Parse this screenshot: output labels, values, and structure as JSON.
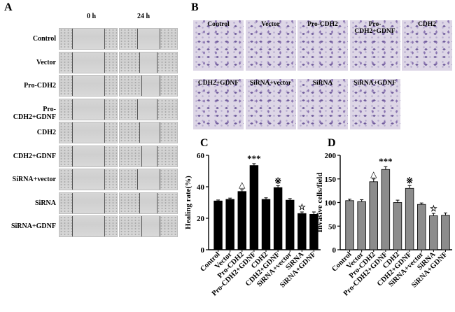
{
  "panel_a": {
    "letter": "A",
    "col_headers": [
      "0 h",
      "24 h"
    ],
    "rows": [
      "Control",
      "Vector",
      "Pro-CDH2",
      "Pro-CDH2+GDNF",
      "CDH2",
      "CDH2+GDNF",
      "SiRNA+vector",
      "SiRNA",
      "SiRNA+GDNF"
    ]
  },
  "panel_b": {
    "letter": "B",
    "images": [
      "Control",
      "Vector",
      "Pro-CDH2",
      "Pro-CDH2+GDNF",
      "CDH2",
      "CDH2+GDNF",
      "SiRNA+vector",
      "SiRNA",
      "SiRNA+GDNF"
    ]
  },
  "panel_c": {
    "letter": "C"
  },
  "panel_d": {
    "letter": "D"
  },
  "chart_data": [
    {
      "type": "bar",
      "ylabel": "Healing rate(%)",
      "ylim": [
        0,
        60
      ],
      "yticks": [
        0,
        20,
        40,
        60
      ],
      "categories": [
        "Control",
        "Vector",
        "Pro-CDH2",
        "Pro-CDH2+GDNF",
        "CDH2",
        "CDH2+GDNF",
        "SiRNA+vector",
        "SiRNA",
        "SiRNA+GDNF"
      ],
      "values": [
        31,
        32,
        37,
        53.5,
        32,
        39.5,
        31.5,
        23,
        22.5
      ],
      "errors": [
        0.6,
        0.8,
        1.2,
        1.2,
        1.0,
        1.2,
        1.0,
        1.0,
        1.5
      ],
      "annotations": [
        "",
        "",
        "△",
        "***",
        "",
        "※",
        "",
        "☆",
        ""
      ],
      "bar_color": "#000000"
    },
    {
      "type": "bar",
      "ylabel": "Invasive cells/field",
      "ylim": [
        0,
        200
      ],
      "yticks": [
        0,
        50,
        100,
        150,
        200
      ],
      "categories": [
        "Control",
        "Vector",
        "Pro-CDH2",
        "Pro-CDH2+GDNF",
        "CDH2",
        "CDH2+GDNF",
        "SiRNA+vector",
        "SiRNA",
        "SiRNA+GDNF"
      ],
      "values": [
        104,
        102,
        144,
        170,
        100,
        130,
        96,
        72,
        73
      ],
      "errors": [
        3,
        4,
        6,
        6,
        5,
        6,
        3,
        5,
        5
      ],
      "annotations": [
        "",
        "",
        "△",
        "***",
        "",
        "※",
        "",
        "☆",
        ""
      ],
      "bar_color": "#8c8c8c"
    }
  ]
}
